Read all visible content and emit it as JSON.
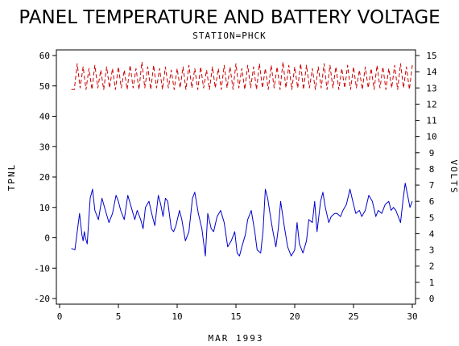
{
  "chart_data": {
    "type": "line",
    "title": "PANEL TEMPERATURE AND BATTERY VOLTAGE",
    "subtitle": "STATION=PHCK",
    "xlabel": "MAR 1993",
    "ylabel": "TPNL",
    "y2label": "VOLTS",
    "xlim": [
      0,
      30
    ],
    "ylim": [
      -20,
      60
    ],
    "y2lim": [
      0,
      15
    ],
    "x_ticks": [
      0,
      5,
      10,
      15,
      20,
      25,
      30
    ],
    "y_ticks": [
      -20,
      -10,
      0,
      10,
      20,
      30,
      40,
      50,
      60
    ],
    "y2_ticks": [
      0,
      1,
      2,
      3,
      4,
      5,
      6,
      7,
      8,
      9,
      10,
      11,
      12,
      13,
      14,
      15
    ],
    "grid": false,
    "series": [
      {
        "color": "#0000cc",
        "axis": "left",
        "style": "solid",
        "x": [
          1.0,
          1.3,
          1.5,
          1.7,
          1.9,
          2.0,
          2.1,
          2.2,
          2.35,
          2.6,
          2.8,
          3.0,
          3.3,
          3.6,
          3.9,
          4.2,
          4.5,
          4.8,
          5.0,
          5.2,
          5.5,
          5.8,
          6.1,
          6.4,
          6.6,
          6.9,
          7.1,
          7.3,
          7.6,
          7.9,
          8.1,
          8.4,
          8.6,
          8.8,
          9.0,
          9.2,
          9.5,
          9.7,
          9.9,
          10.2,
          10.4,
          10.7,
          11.0,
          11.3,
          11.5,
          11.8,
          12.1,
          12.4,
          12.6,
          12.9,
          13.1,
          13.4,
          13.7,
          14.0,
          14.3,
          14.6,
          14.9,
          15.1,
          15.3,
          15.5,
          15.8,
          16.0,
          16.3,
          16.6,
          16.8,
          17.1,
          17.3,
          17.5,
          17.7,
          17.9,
          18.1,
          18.4,
          18.6,
          18.8,
          19.1,
          19.4,
          19.7,
          20.0,
          20.2,
          20.4,
          20.7,
          21.0,
          21.2,
          21.5,
          21.7,
          21.9,
          22.2,
          22.4,
          22.6,
          22.9,
          23.1,
          23.4,
          23.6,
          23.9,
          24.1,
          24.4,
          24.7,
          25.0,
          25.2,
          25.5,
          25.7,
          26.0,
          26.3,
          26.6,
          26.9,
          27.1,
          27.4,
          27.7,
          28.0,
          28.2,
          28.4,
          28.6,
          28.8,
          29.0,
          29.2,
          29.4,
          29.6,
          29.8,
          30.0
        ],
        "values": [
          -3.5,
          -4,
          2,
          8,
          1,
          -1,
          2,
          0,
          -2,
          13,
          16,
          9,
          6,
          13,
          9,
          5,
          8,
          14,
          12,
          9,
          6,
          14,
          10,
          6,
          9,
          6,
          3,
          10,
          12,
          7,
          4,
          14,
          11,
          7,
          13,
          12,
          3,
          2,
          4,
          9,
          6,
          -1,
          2,
          13,
          15,
          8,
          3,
          -6,
          8,
          3,
          2,
          7,
          9,
          5,
          -3,
          -1,
          2,
          -5,
          -6,
          -3,
          1,
          6,
          9,
          2,
          -4,
          -5,
          2,
          16,
          13,
          8,
          3,
          -3,
          3,
          12,
          4,
          -3,
          -6,
          -4,
          5,
          -2,
          -5,
          -1,
          6,
          5,
          12,
          2,
          12,
          15,
          10,
          5,
          7,
          8,
          8,
          7,
          9,
          11,
          16,
          11,
          8,
          9,
          7,
          9,
          14,
          12,
          7,
          9,
          8,
          11,
          12,
          9,
          10,
          9,
          7,
          5,
          12,
          18,
          14,
          10,
          12
        ]
      },
      {
        "color": "#cc0000",
        "axis": "right",
        "style": "dashed",
        "x": [
          1.0,
          1.25,
          1.5,
          1.75,
          2.0,
          2.25,
          2.5,
          2.75,
          3.0,
          3.25,
          3.5,
          3.75,
          4.0,
          4.25,
          4.5,
          4.75,
          5.0,
          5.25,
          5.5,
          5.75,
          6.0,
          6.25,
          6.5,
          6.75,
          7.0,
          7.25,
          7.5,
          7.75,
          8.0,
          8.25,
          8.5,
          8.75,
          9.0,
          9.25,
          9.5,
          9.75,
          10.0,
          10.25,
          10.5,
          10.75,
          11.0,
          11.25,
          11.5,
          11.75,
          12.0,
          12.25,
          12.5,
          12.75,
          13.0,
          13.25,
          13.5,
          13.75,
          14.0,
          14.25,
          14.5,
          14.75,
          15.0,
          15.25,
          15.5,
          15.75,
          16.0,
          16.25,
          16.5,
          16.75,
          17.0,
          17.25,
          17.5,
          17.75,
          18.0,
          18.25,
          18.5,
          18.75,
          19.0,
          19.25,
          19.5,
          19.75,
          20.0,
          20.25,
          20.5,
          20.75,
          21.0,
          21.25,
          21.5,
          21.75,
          22.0,
          22.25,
          22.5,
          22.75,
          23.0,
          23.25,
          23.5,
          23.75,
          24.0,
          24.25,
          24.5,
          24.75,
          25.0,
          25.25,
          25.5,
          25.75,
          26.0,
          26.25,
          26.5,
          26.75,
          27.0,
          27.25,
          27.5,
          27.75,
          28.0,
          28.25,
          28.5,
          28.75,
          29.0,
          29.25,
          29.5,
          29.75,
          30.0
        ],
        "values": [
          12.9,
          12.9,
          14.5,
          13.0,
          14.3,
          12.9,
          14.2,
          12.9,
          14.4,
          13.0,
          14.1,
          12.9,
          14.3,
          13.0,
          14.2,
          12.9,
          14.3,
          13.0,
          14.1,
          12.9,
          14.4,
          13.0,
          14.2,
          12.9,
          14.6,
          13.0,
          14.3,
          12.9,
          14.4,
          13.0,
          14.2,
          12.9,
          14.3,
          13.0,
          14.1,
          12.9,
          14.2,
          13.0,
          14.3,
          12.9,
          14.4,
          13.0,
          14.2,
          12.9,
          14.3,
          13.0,
          14.1,
          12.9,
          14.3,
          13.0,
          14.2,
          12.9,
          14.4,
          13.0,
          14.3,
          12.9,
          14.5,
          13.0,
          14.2,
          12.9,
          14.4,
          13.0,
          14.3,
          12.9,
          14.5,
          13.0,
          14.2,
          12.9,
          14.4,
          13.0,
          14.3,
          12.9,
          14.6,
          13.0,
          14.4,
          12.9,
          14.3,
          13.0,
          14.5,
          12.9,
          14.4,
          13.0,
          14.2,
          12.9,
          14.3,
          13.0,
          14.5,
          12.9,
          14.4,
          13.0,
          14.3,
          12.9,
          14.2,
          13.0,
          14.4,
          12.9,
          14.3,
          13.0,
          14.1,
          12.9,
          14.3,
          13.0,
          14.2,
          12.9,
          14.4,
          13.0,
          14.3,
          12.9,
          14.2,
          13.0,
          14.4,
          12.9,
          14.5,
          13.0,
          14.3,
          12.9,
          14.4
        ]
      }
    ]
  }
}
